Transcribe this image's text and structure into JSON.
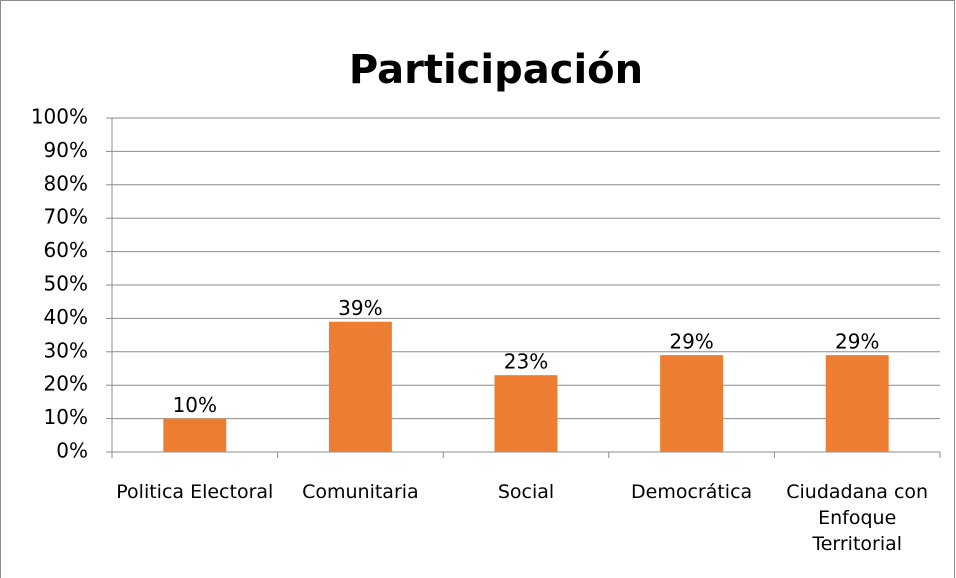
{
  "chart_data": {
    "type": "bar",
    "title": "Participación",
    "categories": [
      "Politica Electoral",
      "Comunitaria",
      "Social",
      "Democrática",
      "Ciudadana con Enfoque Territorial"
    ],
    "values": [
      10,
      39,
      23,
      29,
      29
    ],
    "value_labels": [
      "10%",
      "39%",
      "23%",
      "29%",
      "29%"
    ],
    "color": "#ed7d31",
    "ylim": [
      0,
      100
    ],
    "yticks": [
      {
        "value": 0,
        "label": "0%"
      },
      {
        "value": 10,
        "label": "10%"
      },
      {
        "value": 20,
        "label": "20%"
      },
      {
        "value": 30,
        "label": "30%"
      },
      {
        "value": 40,
        "label": "40%"
      },
      {
        "value": 50,
        "label": "50%"
      },
      {
        "value": 60,
        "label": "60%"
      },
      {
        "value": 70,
        "label": "70%"
      },
      {
        "value": 80,
        "label": "80%"
      },
      {
        "value": 90,
        "label": "90%"
      },
      {
        "value": 100,
        "label": "100%"
      }
    ],
    "grid": true
  }
}
